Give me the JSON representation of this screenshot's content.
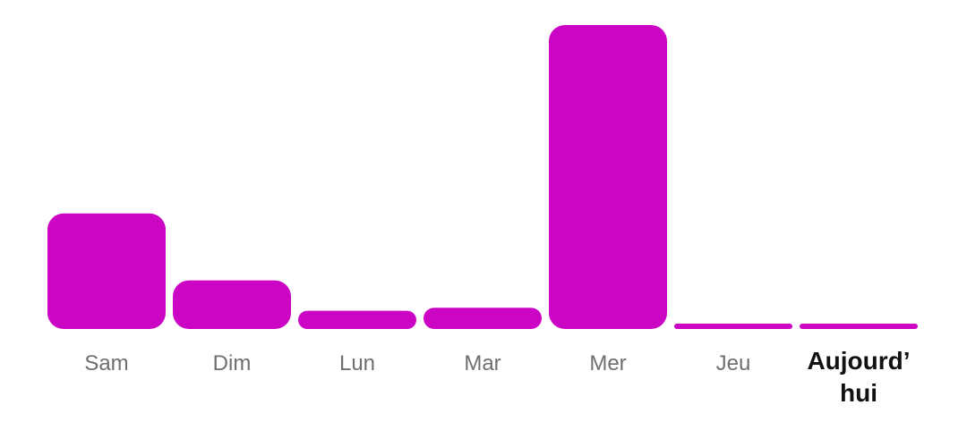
{
  "chart_data": {
    "type": "bar",
    "categories": [
      "Sam",
      "Dim",
      "Lun",
      "Mar",
      "Mer",
      "Jeu",
      "Aujourd’hui"
    ],
    "category_display": [
      [
        "Sam"
      ],
      [
        "Dim"
      ],
      [
        "Lun"
      ],
      [
        "Mar"
      ],
      [
        "Mer"
      ],
      [
        "Jeu"
      ],
      [
        "Aujourd’",
        "hui"
      ]
    ],
    "values": [
      38,
      16,
      6,
      7,
      100,
      0.5,
      0.5
    ],
    "ylim": [
      0,
      100
    ],
    "highlight_category": "Aujourd’hui",
    "grid": false,
    "legend": "none",
    "title": "",
    "xlabel": "",
    "ylabel": ""
  },
  "colors": {
    "bar": "#cc04c4",
    "label": "#6f6f6f",
    "label_current": "#111111",
    "background": "#ffffff"
  }
}
